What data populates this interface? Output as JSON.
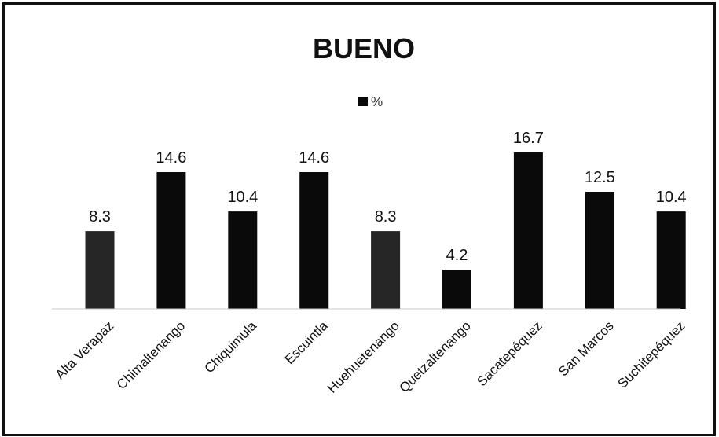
{
  "chart_data": {
    "type": "bar",
    "title": "BUENO",
    "legend": {
      "position": "top",
      "entries": [
        "%"
      ]
    },
    "categories": [
      "Alta Verapaz",
      "Chimaltenango",
      "Chiquimula",
      "Escuintla",
      "Huehuetenango",
      "Quetzaltenango",
      "Sacatepéquez",
      "San Marcos",
      "Suchitepéquez"
    ],
    "series": [
      {
        "name": "%",
        "values": [
          8.3,
          14.6,
          10.4,
          14.6,
          8.3,
          4.2,
          16.7,
          12.5,
          10.4
        ]
      }
    ],
    "data_labels": [
      "8.3",
      "14.6",
      "10.4",
      "14.6",
      "8.3",
      "4.2",
      "16.7",
      "12.5",
      "10.4"
    ],
    "ylim": [
      0,
      16.7
    ],
    "grid": false,
    "colors": {
      "bar": "#0a0a0a",
      "bar_alt": "#262626",
      "axis": "#c8c8c8"
    }
  }
}
